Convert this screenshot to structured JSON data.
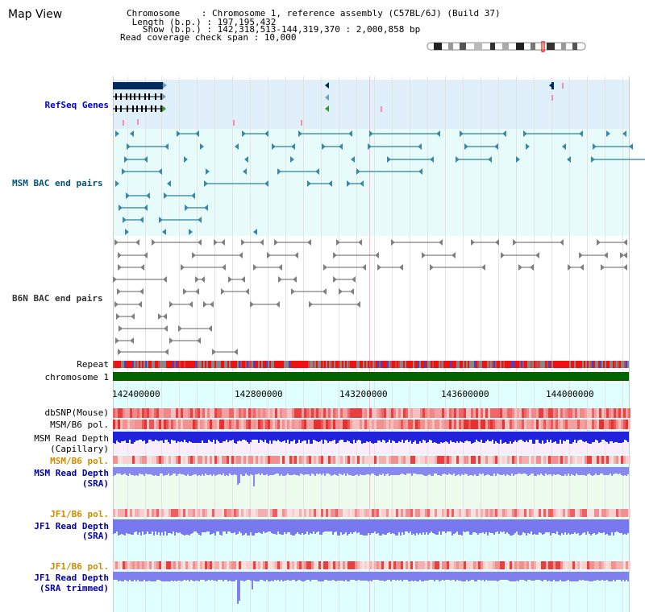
{
  "header": {
    "title": "Map View",
    "info_lines": [
      "Chromosome    : Chromosome 1, reference assembly (C57BL/6J) (Build 37)",
      " Length (b.p.) : 197,195,432",
      "   Show (b.p.) : 142,318,513-144,319,370 : 2,000,858 bp",
      "Read coverage check span : 10,000"
    ]
  },
  "tracks": {
    "refseq": "RefSeq Genes",
    "msm_bac": "MSM BAC end pairs",
    "b6n_bac": "B6N BAC end pairs",
    "repeat": "Repeat",
    "chromosome": "chromosome 1",
    "dbsnp": "dbSNP(Mouse)",
    "msm_b6_pol": "MSM/B6 pol.",
    "msm_read_depth_cap_1": "MSM Read Depth",
    "msm_read_depth_cap_2": "(Capillary)",
    "msm_b6_pol_sra": "MSM/B6 pol.",
    "msm_read_depth_sra_1": "MSM Read Depth",
    "msm_read_depth_sra_2": "(SRA)",
    "jf1_b6_pol": "JF1/B6 pol.",
    "jf1_read_depth_1": "JF1 Read Depth",
    "jf1_read_depth_2": "(SRA)",
    "jf1_b6_pol_trim": "JF1/B6 pol.",
    "jf1_read_depth_trim_1": "JF1 Read Depth",
    "jf1_read_depth_trim_2": "(SRA trimmed)"
  },
  "axis": {
    "ticks": [
      "142400000",
      "142800000",
      "143200000",
      "143600000",
      "144000000"
    ]
  },
  "colors": {
    "refseq_bg": "#dff0fa",
    "msm_bac_bg": "#e8fbfb",
    "cyan_bg": "#e0ffff",
    "msm_line": "#006080",
    "b6n_line": "#606060",
    "chromosome": "#006400",
    "snp_red": "#ee2222",
    "depth_blue": "#2222dd",
    "depth_light": "#8888ee"
  }
}
